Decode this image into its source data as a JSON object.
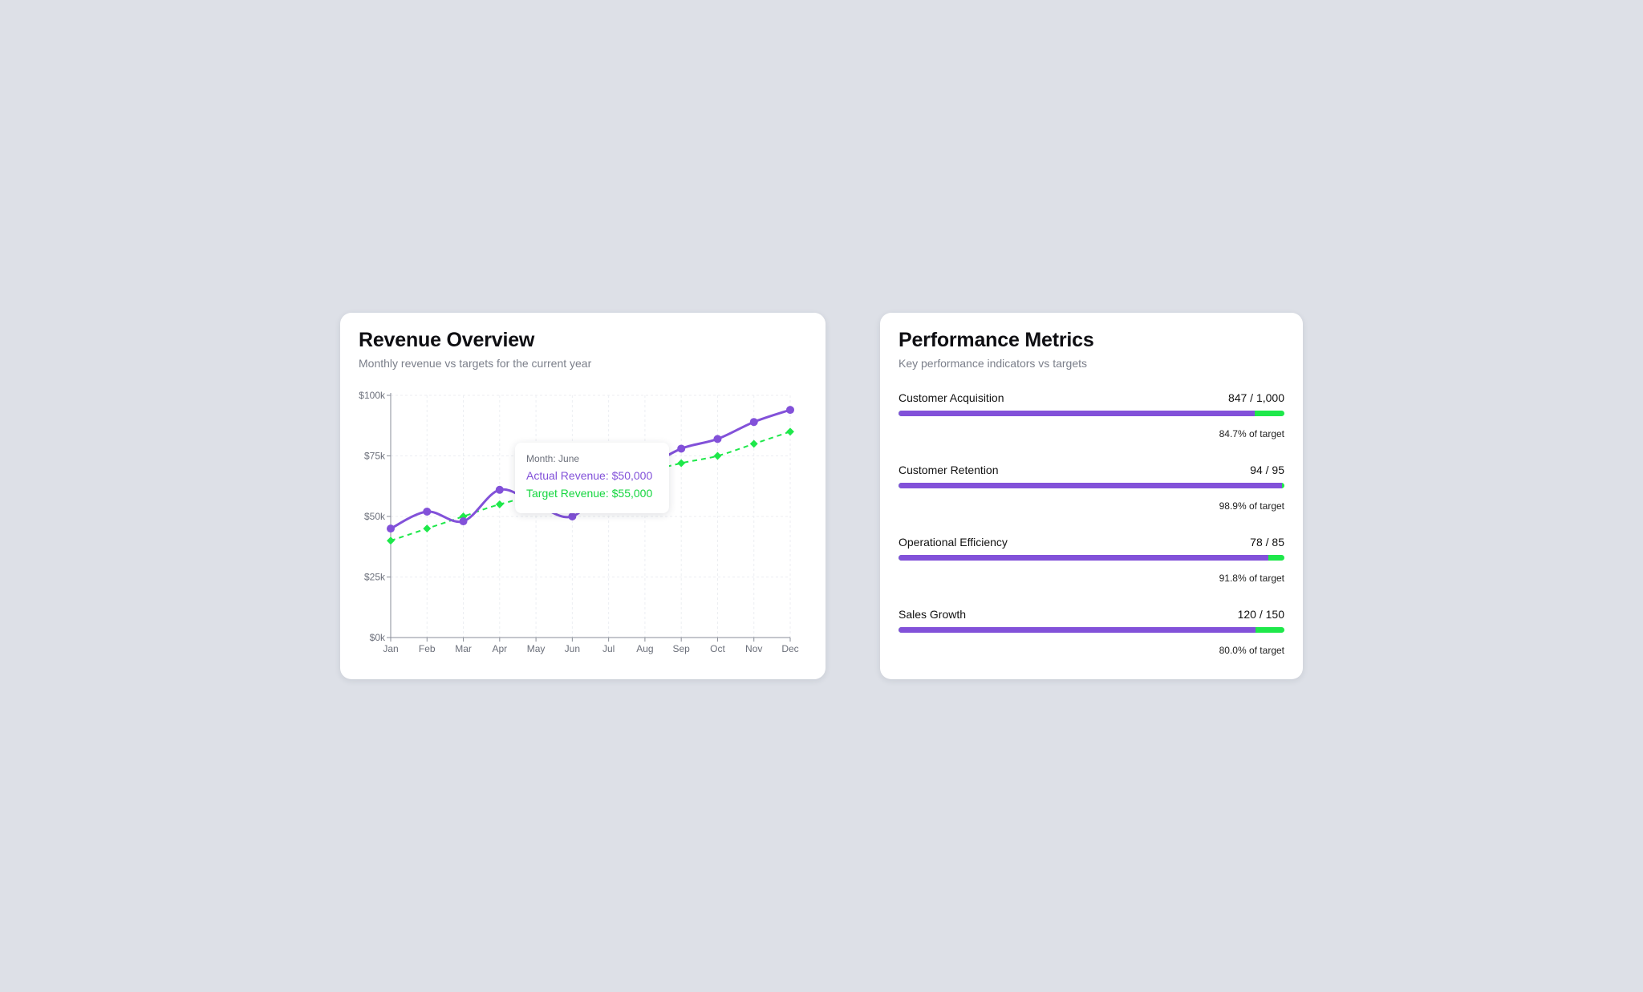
{
  "revenue": {
    "title": "Revenue Overview",
    "subtitle": "Monthly revenue vs targets for the current year",
    "tooltip": {
      "month": "Month: June",
      "actual": "Actual Revenue: $50,000",
      "target": "Target Revenue: $55,000"
    }
  },
  "chart_data": {
    "type": "line",
    "x": [
      "Jan",
      "Feb",
      "Mar",
      "Apr",
      "May",
      "Jun",
      "Jul",
      "Aug",
      "Sep",
      "Oct",
      "Nov",
      "Dec"
    ],
    "ylim": [
      0,
      100000
    ],
    "yticks": [
      0,
      25000,
      50000,
      75000,
      100000
    ],
    "ytick_labels": [
      "$0k",
      "$25k",
      "$50k",
      "$75k",
      "$100k"
    ],
    "grid": true,
    "series": [
      {
        "key": "actual",
        "values": [
          45000,
          52000,
          48000,
          61000,
          55000,
          50000,
          64000,
          70000,
          78000,
          82000,
          89000,
          94000
        ],
        "color": "#8251d9",
        "style": "solid"
      },
      {
        "key": "target",
        "values": [
          40000,
          45000,
          50000,
          55000,
          58000,
          55000,
          62000,
          68000,
          72000,
          75000,
          80000,
          85000
        ],
        "color": "#1ee84a",
        "style": "dashed"
      }
    ]
  },
  "metrics": {
    "title": "Performance Metrics",
    "subtitle": "Key performance indicators vs targets",
    "items": [
      {
        "name": "Customer Acquisition",
        "value": "847 / 1,000",
        "fill": 0.924,
        "pct": "84.7% of target"
      },
      {
        "name": "Customer Retention",
        "value": "94 / 95",
        "fill": 0.994,
        "pct": "98.9% of target"
      },
      {
        "name": "Operational Efficiency",
        "value": "78 / 85",
        "fill": 0.959,
        "pct": "91.8% of target"
      },
      {
        "name": "Sales Growth",
        "value": "120 / 150",
        "fill": 0.925,
        "pct": "80.0% of target"
      }
    ],
    "colors": {
      "progress": "#8251d9",
      "remainder": "#1ee84a"
    }
  }
}
